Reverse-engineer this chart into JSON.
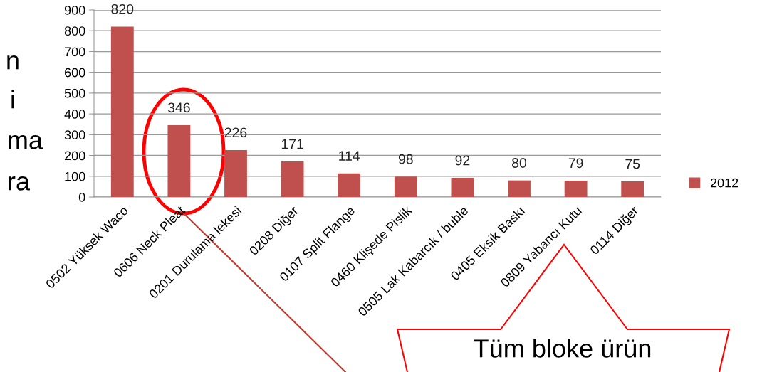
{
  "chart_data": {
    "type": "bar",
    "categories": [
      "0502 Yüksek Waco",
      "0606 Neck Pleat",
      "0201 Durulama lekesi",
      "0208 Diğer",
      "0107 Split Flange",
      "0460 Klişede Pislik",
      "0505 Lak Kabarcık / buble",
      "0405 Eksik Baskı",
      "0809 Yabancı Kutu",
      "0114 Diğer"
    ],
    "series": [
      {
        "name": "2012",
        "color": "#c0504d",
        "values": [
          820,
          346,
          226,
          171,
          114,
          98,
          92,
          80,
          79,
          75
        ]
      }
    ],
    "ylim": [
      0,
      900
    ],
    "yticks": [
      0,
      100,
      200,
      300,
      400,
      500,
      600,
      700,
      800,
      900
    ],
    "grid": "y",
    "legend": "right",
    "data_labels": true,
    "annotations": [
      "n",
      "i",
      "ma",
      "ra",
      "Tüm bloke ürün"
    ]
  }
}
